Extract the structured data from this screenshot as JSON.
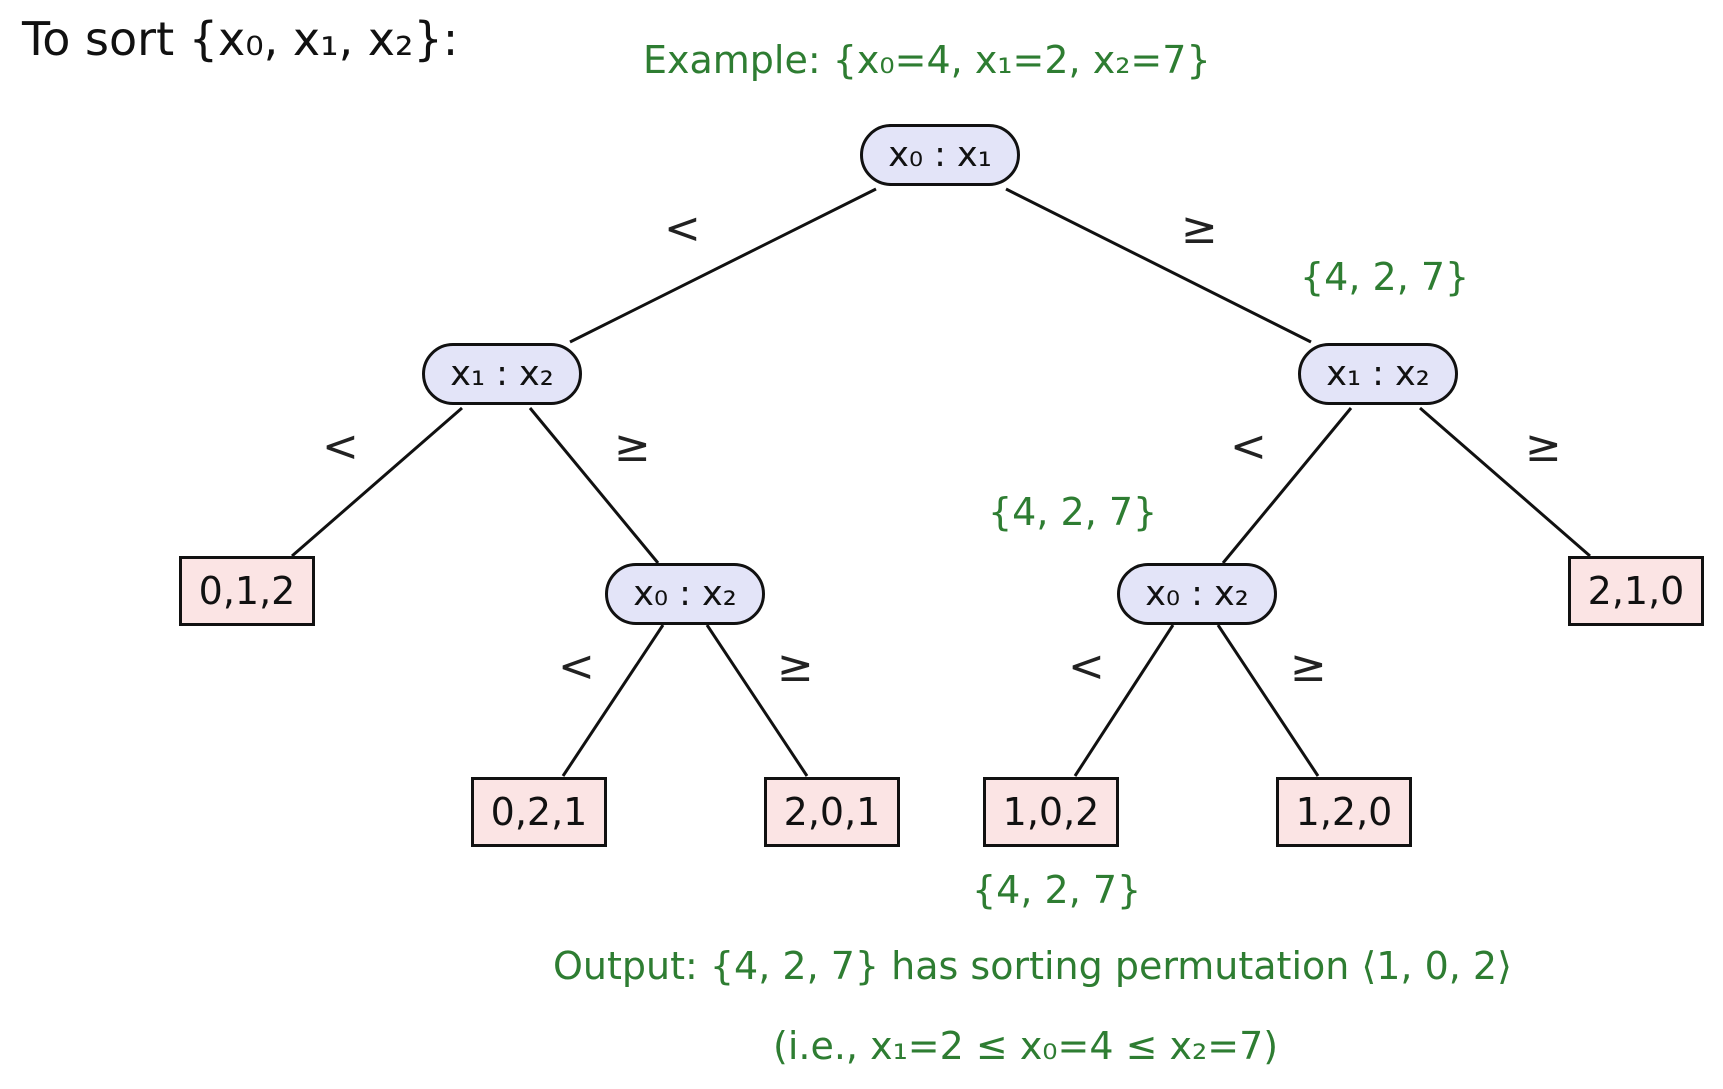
{
  "title": "To sort {x₀, x₁, x₂}:",
  "example": "Example: {x₀=4, x₁=2, x₂=7}",
  "nodes": {
    "root": "x₀ : x₁",
    "left": "x₁ : x₂",
    "right": "x₁ : x₂",
    "left_right": "x₀ : x₂",
    "right_left": "x₀ : x₂"
  },
  "leaves": {
    "l1": "0,1,2",
    "l2": "0,2,1",
    "l3": "2,0,1",
    "l4": "1,0,2",
    "l5": "1,2,0",
    "l6": "2,1,0"
  },
  "edge_labels": {
    "less": "<",
    "geq": "≥"
  },
  "path_notes": {
    "n1": "{4, 2, 7}",
    "n2": "{4, 2, 7}",
    "n3": "{4, 2, 7}"
  },
  "output": {
    "line1": "Output: {4, 2, 7} has sorting permutation ⟨1, 0, 2⟩",
    "line2": "(i.e., x₁=2 ≤ x₀=4 ≤ x₂=7)"
  },
  "colors": {
    "node_fill": "#e3e4f8",
    "leaf_fill": "#fbe4e4",
    "annotation": "#2e7d32"
  }
}
